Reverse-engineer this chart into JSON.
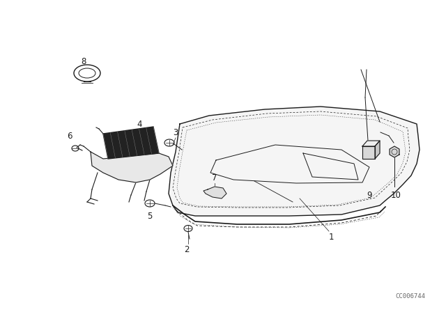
{
  "background_color": "#ffffff",
  "figure_width": 6.4,
  "figure_height": 4.48,
  "dpi": 100,
  "watermark": "CC006744",
  "line_color": "#1a1a1a",
  "label_fontsize": 8.5
}
